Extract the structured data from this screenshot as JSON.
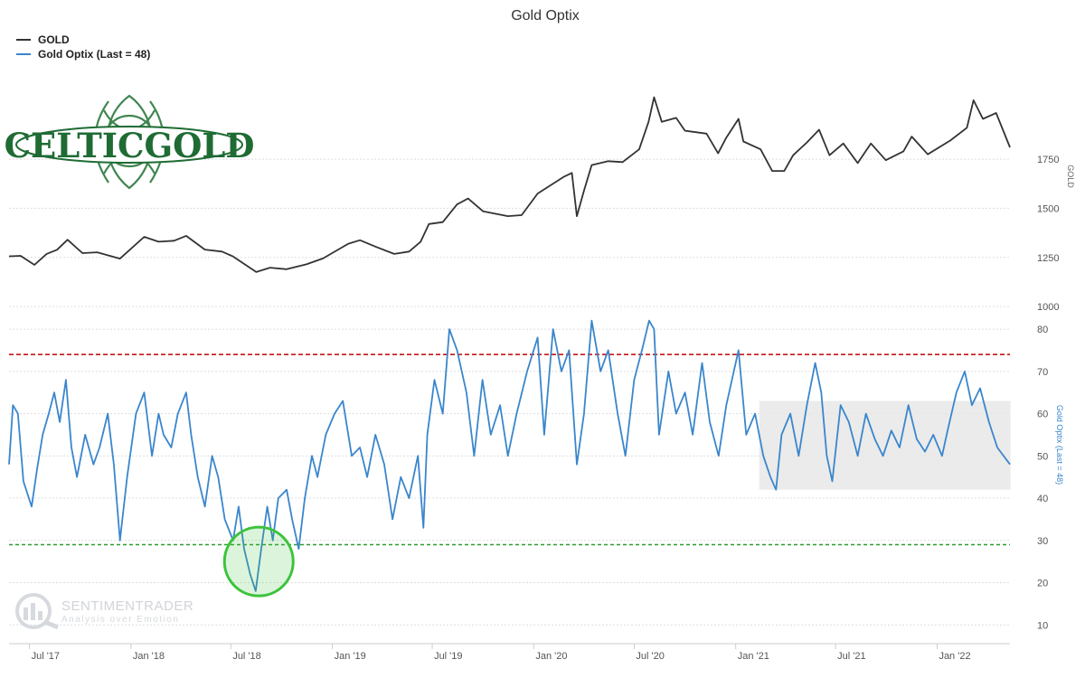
{
  "chart_data": {
    "type": "line",
    "title": "Gold Optix",
    "legend": {
      "placement": "top-left",
      "items": [
        {
          "label": "GOLD",
          "color": "#333333"
        },
        {
          "label": "Gold Optix (Last = 48)",
          "color": "#3a86cc"
        }
      ]
    },
    "x_tick_labels": [
      "Jul '17",
      "Jan '18",
      "Jul '18",
      "Jan '19",
      "Jul '19",
      "Jan '20",
      "Jul '20",
      "Jan '21",
      "Jul '21",
      "Jan '22"
    ],
    "x_range": [
      "2017-05-25",
      "2022-05-13"
    ],
    "gold_axis": {
      "label": "GOLD",
      "ticks": [
        "1750",
        "1500",
        "1250",
        "1000"
      ],
      "ylim": [
        950,
        2100
      ]
    },
    "optix_axis": {
      "label": "Gold Optix (Last = 48)",
      "ticks": [
        "80",
        "70",
        "60",
        "50",
        "40",
        "30",
        "20",
        "10"
      ],
      "ylim": [
        6,
        89
      ]
    },
    "reference_lines": [
      {
        "value": 74,
        "color": "#c00000",
        "style": "dashed"
      },
      {
        "value": 29,
        "color": "#2e9e2e",
        "style": "dashed"
      }
    ],
    "highlight_box": {
      "x": [
        "2021-03",
        "2022-05"
      ],
      "y": [
        42,
        63
      ],
      "color": "#e6e6e6"
    },
    "highlight_circle": {
      "x": "2018-08",
      "y": 25,
      "color": "#3cc33c"
    },
    "series": [
      {
        "name": "GOLD",
        "color": "#333333",
        "points": [
          [
            "2017-05-25",
            1256
          ],
          [
            "2017-06-15",
            1258
          ],
          [
            "2017-07-10",
            1212
          ],
          [
            "2017-08-01",
            1268
          ],
          [
            "2017-08-20",
            1289
          ],
          [
            "2017-09-08",
            1340
          ],
          [
            "2017-10-05",
            1272
          ],
          [
            "2017-11-01",
            1276
          ],
          [
            "2017-12-12",
            1244
          ],
          [
            "2018-01-25",
            1355
          ],
          [
            "2018-02-20",
            1330
          ],
          [
            "2018-03-20",
            1335
          ],
          [
            "2018-04-11",
            1360
          ],
          [
            "2018-05-15",
            1290
          ],
          [
            "2018-06-15",
            1280
          ],
          [
            "2018-07-05",
            1255
          ],
          [
            "2018-08-16",
            1176
          ],
          [
            "2018-09-10",
            1198
          ],
          [
            "2018-10-10",
            1190
          ],
          [
            "2018-11-15",
            1215
          ],
          [
            "2018-12-15",
            1245
          ],
          [
            "2019-01-30",
            1320
          ],
          [
            "2019-02-20",
            1338
          ],
          [
            "2019-03-20",
            1305
          ],
          [
            "2019-04-23",
            1268
          ],
          [
            "2019-05-20",
            1280
          ],
          [
            "2019-06-10",
            1330
          ],
          [
            "2019-06-25",
            1420
          ],
          [
            "2019-07-20",
            1430
          ],
          [
            "2019-08-15",
            1520
          ],
          [
            "2019-09-04",
            1550
          ],
          [
            "2019-10-01",
            1485
          ],
          [
            "2019-11-15",
            1460
          ],
          [
            "2019-12-10",
            1465
          ],
          [
            "2020-01-08",
            1575
          ],
          [
            "2020-02-24",
            1660
          ],
          [
            "2020-03-10",
            1680
          ],
          [
            "2020-03-19",
            1460
          ],
          [
            "2020-04-01",
            1590
          ],
          [
            "2020-04-15",
            1720
          ],
          [
            "2020-05-15",
            1740
          ],
          [
            "2020-06-10",
            1735
          ],
          [
            "2020-07-10",
            1800
          ],
          [
            "2020-07-27",
            1940
          ],
          [
            "2020-08-06",
            2065
          ],
          [
            "2020-08-20",
            1940
          ],
          [
            "2020-09-15",
            1960
          ],
          [
            "2020-10-01",
            1895
          ],
          [
            "2020-11-09",
            1880
          ],
          [
            "2020-11-30",
            1780
          ],
          [
            "2020-12-15",
            1860
          ],
          [
            "2021-01-06",
            1955
          ],
          [
            "2021-01-15",
            1840
          ],
          [
            "2021-02-15",
            1800
          ],
          [
            "2021-03-08",
            1690
          ],
          [
            "2021-03-30",
            1690
          ],
          [
            "2021-04-15",
            1770
          ],
          [
            "2021-05-10",
            1835
          ],
          [
            "2021-06-01",
            1900
          ],
          [
            "2021-06-20",
            1770
          ],
          [
            "2021-07-15",
            1830
          ],
          [
            "2021-08-10",
            1730
          ],
          [
            "2021-09-03",
            1830
          ],
          [
            "2021-09-30",
            1745
          ],
          [
            "2021-11-01",
            1790
          ],
          [
            "2021-11-16",
            1865
          ],
          [
            "2021-12-15",
            1775
          ],
          [
            "2022-01-25",
            1845
          ],
          [
            "2022-02-24",
            1910
          ],
          [
            "2022-03-08",
            2050
          ],
          [
            "2022-03-25",
            1955
          ],
          [
            "2022-04-18",
            1985
          ],
          [
            "2022-05-13",
            1810
          ]
        ]
      },
      {
        "name": "Gold Optix (Last = 48)",
        "color": "#3a86cc",
        "points": [
          [
            "2017-05-25",
            48
          ],
          [
            "2017-06-01",
            62
          ],
          [
            "2017-06-10",
            60
          ],
          [
            "2017-06-20",
            44
          ],
          [
            "2017-07-05",
            38
          ],
          [
            "2017-07-15",
            47
          ],
          [
            "2017-07-25",
            55
          ],
          [
            "2017-08-05",
            60
          ],
          [
            "2017-08-15",
            65
          ],
          [
            "2017-08-25",
            58
          ],
          [
            "2017-09-05",
            68
          ],
          [
            "2017-09-15",
            52
          ],
          [
            "2017-09-25",
            45
          ],
          [
            "2017-10-10",
            55
          ],
          [
            "2017-10-25",
            48
          ],
          [
            "2017-11-05",
            52
          ],
          [
            "2017-11-20",
            60
          ],
          [
            "2017-12-01",
            48
          ],
          [
            "2017-12-12",
            30
          ],
          [
            "2017-12-25",
            45
          ],
          [
            "2018-01-10",
            60
          ],
          [
            "2018-01-25",
            65
          ],
          [
            "2018-02-08",
            50
          ],
          [
            "2018-02-20",
            60
          ],
          [
            "2018-03-01",
            55
          ],
          [
            "2018-03-15",
            52
          ],
          [
            "2018-03-27",
            60
          ],
          [
            "2018-04-11",
            65
          ],
          [
            "2018-04-20",
            55
          ],
          [
            "2018-05-02",
            45
          ],
          [
            "2018-05-15",
            38
          ],
          [
            "2018-05-28",
            50
          ],
          [
            "2018-06-08",
            45
          ],
          [
            "2018-06-20",
            35
          ],
          [
            "2018-07-05",
            30
          ],
          [
            "2018-07-15",
            38
          ],
          [
            "2018-07-25",
            28
          ],
          [
            "2018-08-05",
            22
          ],
          [
            "2018-08-15",
            18
          ],
          [
            "2018-08-25",
            28
          ],
          [
            "2018-09-05",
            38
          ],
          [
            "2018-09-15",
            30
          ],
          [
            "2018-09-25",
            40
          ],
          [
            "2018-10-10",
            42
          ],
          [
            "2018-10-20",
            35
          ],
          [
            "2018-11-01",
            28
          ],
          [
            "2018-11-12",
            40
          ],
          [
            "2018-11-25",
            50
          ],
          [
            "2018-12-05",
            45
          ],
          [
            "2018-12-20",
            55
          ],
          [
            "2019-01-05",
            60
          ],
          [
            "2019-01-20",
            63
          ],
          [
            "2019-02-05",
            50
          ],
          [
            "2019-02-20",
            52
          ],
          [
            "2019-03-05",
            45
          ],
          [
            "2019-03-20",
            55
          ],
          [
            "2019-04-05",
            48
          ],
          [
            "2019-04-20",
            35
          ],
          [
            "2019-05-05",
            45
          ],
          [
            "2019-05-20",
            40
          ],
          [
            "2019-06-05",
            50
          ],
          [
            "2019-06-15",
            33
          ],
          [
            "2019-06-22",
            55
          ],
          [
            "2019-07-05",
            68
          ],
          [
            "2019-07-20",
            60
          ],
          [
            "2019-08-01",
            80
          ],
          [
            "2019-08-15",
            75
          ],
          [
            "2019-09-01",
            65
          ],
          [
            "2019-09-15",
            50
          ],
          [
            "2019-09-30",
            68
          ],
          [
            "2019-10-15",
            55
          ],
          [
            "2019-11-01",
            62
          ],
          [
            "2019-11-15",
            50
          ],
          [
            "2019-12-01",
            60
          ],
          [
            "2019-12-20",
            70
          ],
          [
            "2020-01-08",
            78
          ],
          [
            "2020-01-20",
            55
          ],
          [
            "2020-02-05",
            80
          ],
          [
            "2020-02-20",
            70
          ],
          [
            "2020-03-05",
            75
          ],
          [
            "2020-03-19",
            48
          ],
          [
            "2020-04-01",
            60
          ],
          [
            "2020-04-15",
            82
          ],
          [
            "2020-05-01",
            70
          ],
          [
            "2020-05-15",
            75
          ],
          [
            "2020-06-01",
            60
          ],
          [
            "2020-06-15",
            50
          ],
          [
            "2020-07-01",
            68
          ],
          [
            "2020-07-15",
            75
          ],
          [
            "2020-07-28",
            82
          ],
          [
            "2020-08-06",
            80
          ],
          [
            "2020-08-15",
            55
          ],
          [
            "2020-09-01",
            70
          ],
          [
            "2020-09-15",
            60
          ],
          [
            "2020-10-01",
            65
          ],
          [
            "2020-10-15",
            55
          ],
          [
            "2020-11-01",
            72
          ],
          [
            "2020-11-15",
            58
          ],
          [
            "2020-12-01",
            50
          ],
          [
            "2020-12-15",
            62
          ],
          [
            "2021-01-06",
            75
          ],
          [
            "2021-01-20",
            55
          ],
          [
            "2021-02-05",
            60
          ],
          [
            "2021-02-20",
            50
          ],
          [
            "2021-03-05",
            45
          ],
          [
            "2021-03-15",
            42
          ],
          [
            "2021-03-25",
            55
          ],
          [
            "2021-04-10",
            60
          ],
          [
            "2021-04-25",
            50
          ],
          [
            "2021-05-10",
            62
          ],
          [
            "2021-05-25",
            72
          ],
          [
            "2021-06-05",
            65
          ],
          [
            "2021-06-15",
            50
          ],
          [
            "2021-06-25",
            44
          ],
          [
            "2021-07-10",
            62
          ],
          [
            "2021-07-25",
            58
          ],
          [
            "2021-08-10",
            50
          ],
          [
            "2021-08-25",
            60
          ],
          [
            "2021-09-10",
            54
          ],
          [
            "2021-09-25",
            50
          ],
          [
            "2021-10-10",
            56
          ],
          [
            "2021-10-25",
            52
          ],
          [
            "2021-11-10",
            62
          ],
          [
            "2021-11-25",
            54
          ],
          [
            "2021-12-10",
            51
          ],
          [
            "2021-12-25",
            55
          ],
          [
            "2022-01-10",
            50
          ],
          [
            "2022-01-20",
            56
          ],
          [
            "2022-02-05",
            65
          ],
          [
            "2022-02-20",
            70
          ],
          [
            "2022-03-05",
            62
          ],
          [
            "2022-03-20",
            66
          ],
          [
            "2022-04-05",
            58
          ],
          [
            "2022-04-20",
            52
          ],
          [
            "2022-05-13",
            48
          ]
        ]
      }
    ]
  },
  "watermarks": {
    "logo": "CELTICGOLD",
    "sentiment_trader": {
      "name": "SENTIMENTRADER",
      "tagline": "Analysis over Emotion"
    }
  }
}
